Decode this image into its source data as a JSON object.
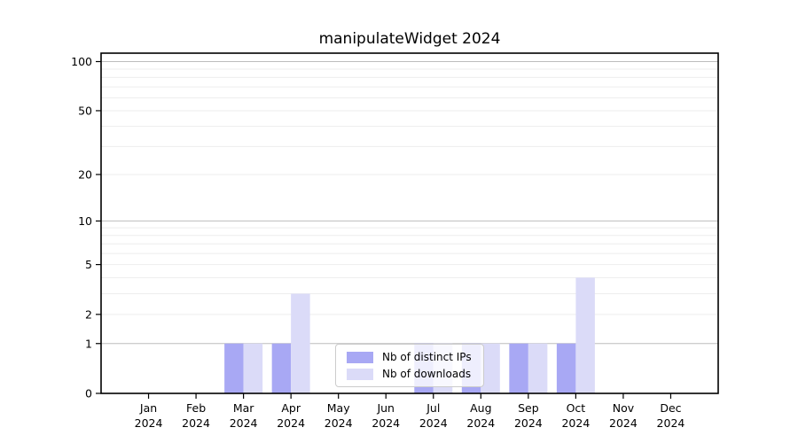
{
  "chart_data": {
    "type": "bar",
    "title": "manipulateWidget 2024",
    "xlabel": "",
    "ylabel": "",
    "year_label": "2024",
    "categories": [
      "Jan",
      "Feb",
      "Mar",
      "Apr",
      "May",
      "Jun",
      "Jul",
      "Aug",
      "Sep",
      "Oct",
      "Nov",
      "Dec"
    ],
    "series": [
      {
        "name": "Nb of distinct IPs",
        "color": "#a8a8f4",
        "values": [
          0,
          0,
          1,
          1,
          0,
          0,
          1,
          1,
          1,
          1,
          0,
          0
        ]
      },
      {
        "name": "Nb of downloads",
        "color": "#dbdbf8",
        "values": [
          0,
          0,
          1,
          3,
          0,
          0,
          1,
          1,
          1,
          4,
          0,
          0
        ]
      }
    ],
    "yaxis": {
      "scale": "log1p",
      "ticks": [
        0,
        1,
        2,
        5,
        10,
        20,
        50,
        100
      ],
      "major_gridlines": [
        1,
        10,
        100
      ],
      "minor_gridlines": [
        2,
        3,
        4,
        5,
        6,
        7,
        8,
        9,
        20,
        30,
        40,
        50,
        60,
        70,
        80,
        90
      ],
      "ylim": [
        0,
        112
      ]
    },
    "legend_position": "lower center-right inside plot",
    "grid": "horizontal only",
    "colors": {
      "major_gridline": "#bdbdbd",
      "minor_gridline": "#ededed",
      "spine": "#000000",
      "background": "#ffffff"
    }
  }
}
